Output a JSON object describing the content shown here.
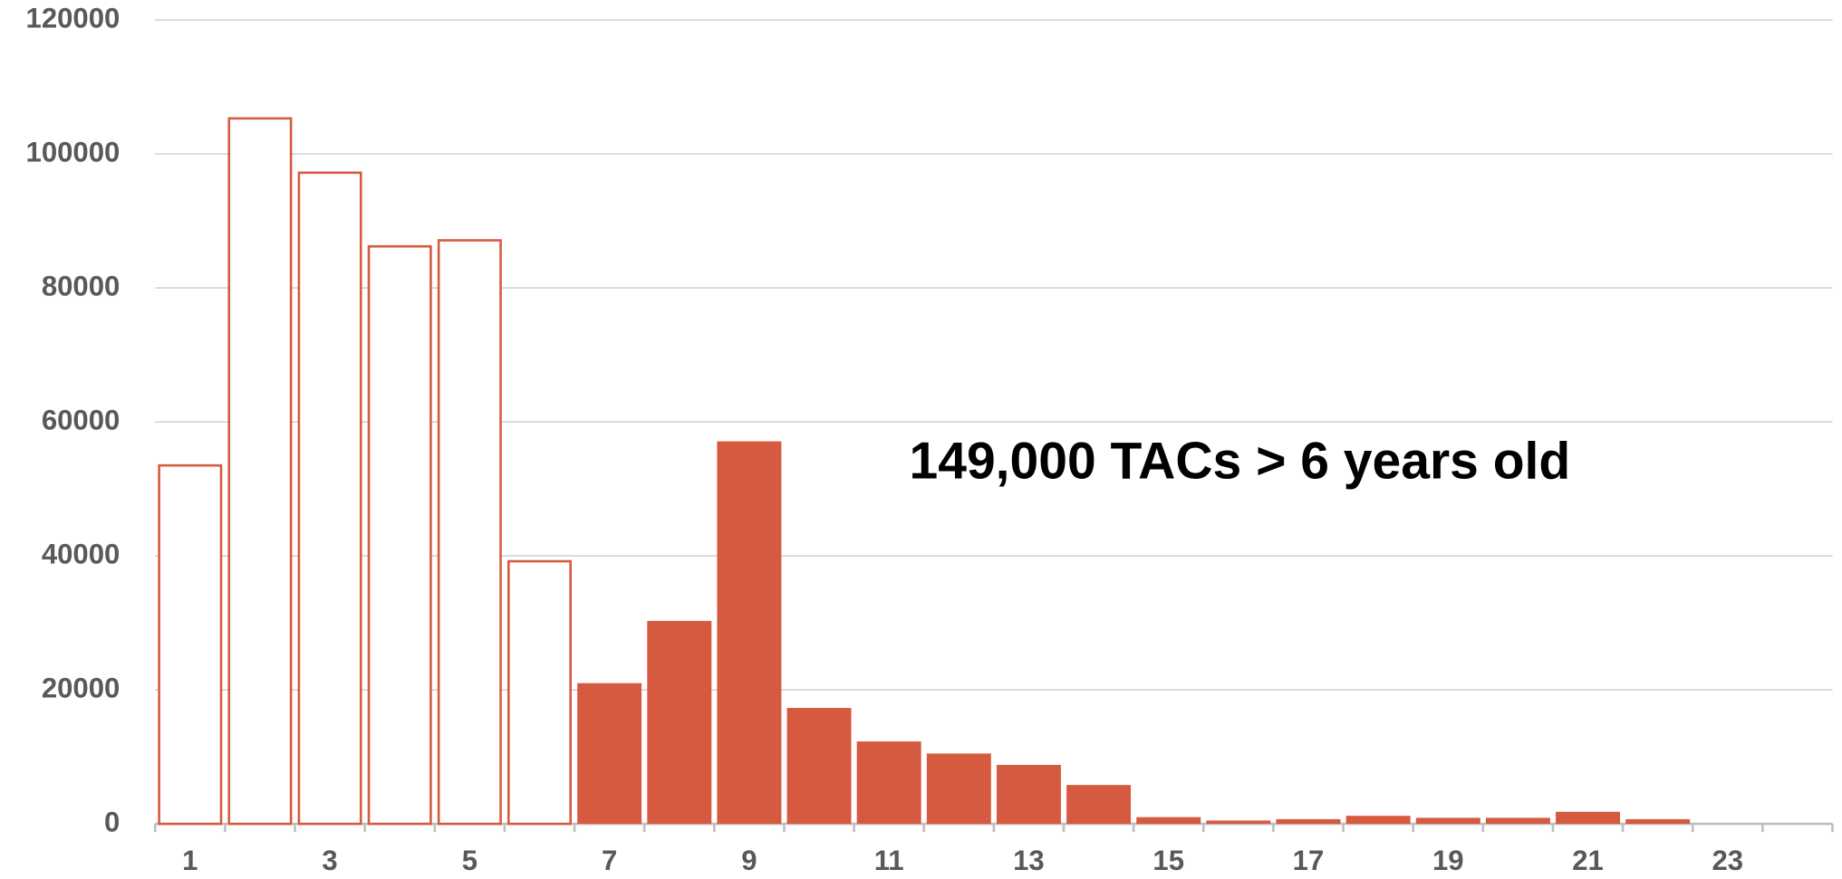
{
  "chart_data": {
    "type": "bar",
    "annotation": "149,000 TACs > 6 years old",
    "categories": [
      "1",
      null,
      "3",
      null,
      "5",
      null,
      "7",
      null,
      "9",
      null,
      "11",
      null,
      "13",
      null,
      "15",
      null,
      "17",
      null,
      "19",
      null,
      "21",
      null,
      "23",
      null
    ],
    "values": [
      53500,
      105300,
      97200,
      86200,
      87100,
      39200,
      21000,
      30300,
      57100,
      17300,
      12300,
      10500,
      8800,
      5800,
      1000,
      500,
      700,
      1200,
      900,
      900,
      1800,
      700,
      0,
      0
    ],
    "filled": [
      false,
      false,
      false,
      false,
      false,
      false,
      true,
      true,
      true,
      true,
      true,
      true,
      true,
      true,
      true,
      true,
      true,
      true,
      true,
      true,
      true,
      true,
      true,
      true
    ],
    "color": "#d65a3f",
    "ylim": [
      0,
      120000
    ],
    "yticks": [
      0,
      20000,
      40000,
      60000,
      80000,
      100000,
      120000
    ],
    "grid": true
  }
}
